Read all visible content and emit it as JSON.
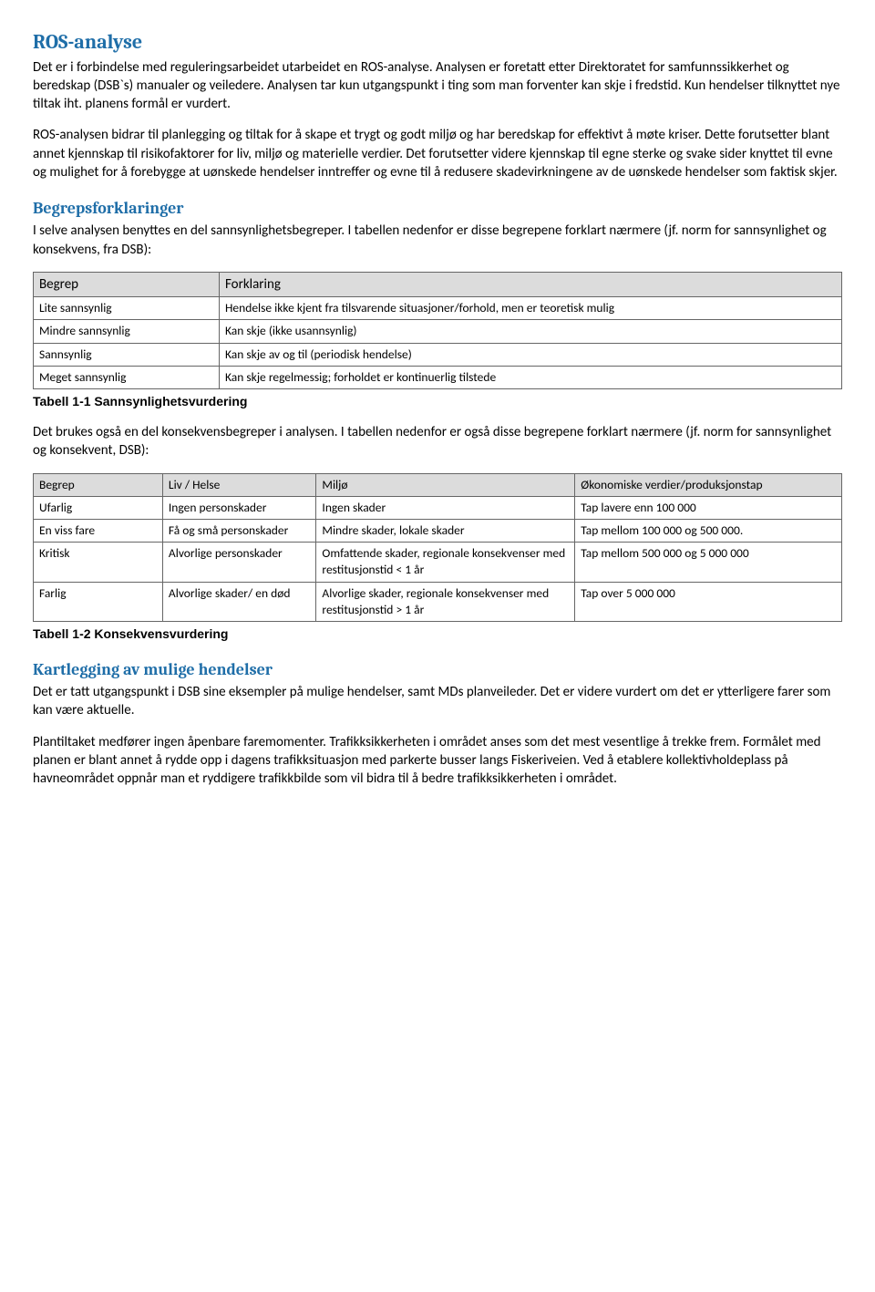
{
  "colors": {
    "heading": "#1f6ea8",
    "table_header_bg": "#dcdcdc",
    "table_border": "#666666",
    "text": "#000000",
    "background": "#ffffff"
  },
  "fonts": {
    "body": "Calibri",
    "heading": "Cambria",
    "caption": "Arial",
    "body_size_pt": 11,
    "heading_main_size_pt": 16,
    "heading_sub_size_pt": 14,
    "table_size_pt": 10
  },
  "section1": {
    "title": "ROS-analyse",
    "p1": "Det er i forbindelse med reguleringsarbeidet utarbeidet en ROS-analyse. Analysen er foretatt etter Direktoratet for samfunnssikkerhet og beredskap (DSB`s) manualer og veiledere. Analysen tar kun utgangspunkt i ting som man forventer kan skje i fredstid. Kun hendelser tilknyttet nye tiltak iht. planens formål er vurdert.",
    "p2": "ROS-analysen bidrar til planlegging og tiltak for å skape et trygt og godt miljø og har beredskap for effektivt å møte kriser. Dette forutsetter blant annet kjennskap til risikofaktorer for liv, miljø og materielle verdier. Det forutsetter videre kjennskap til egne sterke og svake sider knyttet til evne og mulighet for å forebygge at uønskede hendelser inntreffer og evne til å redusere skadevirkningene av de uønskede hendelser som faktisk skjer."
  },
  "section2": {
    "title": "Begrepsforklaringer",
    "intro": "I selve analysen benyttes en del sannsynlighetsbegreper. I tabellen nedenfor er disse begrepene forklart nærmere (jf. norm for sannsynlighet og konsekvens, fra DSB):"
  },
  "table1": {
    "head": {
      "c0": "Begrep",
      "c1": "Forklaring"
    },
    "rows": [
      {
        "c0": "Lite sannsynlig",
        "c1": "Hendelse ikke kjent fra tilsvarende situasjoner/forhold, men er teoretisk mulig"
      },
      {
        "c0": "Mindre sannsynlig",
        "c1": "Kan skje (ikke usannsynlig)"
      },
      {
        "c0": "Sannsynlig",
        "c1": "Kan skje av og til (periodisk hendelse)"
      },
      {
        "c0": "Meget sannsynlig",
        "c1": "Kan skje regelmessig; forholdet er kontinuerlig tilstede"
      }
    ],
    "caption": "Tabell 1-1 Sannsynlighetsvurdering"
  },
  "between": {
    "p": "Det brukes også en del konsekvensbegreper i analysen. I tabellen nedenfor er også disse begrepene forklart nærmere (jf. norm for sannsynlighet og konsekvent, DSB):"
  },
  "table2": {
    "head": {
      "c0": "Begrep",
      "c1": "Liv / Helse",
      "c2": "Miljø",
      "c3": "Økonomiske verdier/produksjonstap"
    },
    "rows": [
      {
        "c0": "Ufarlig",
        "c1": "Ingen personskader",
        "c2": "Ingen skader",
        "c3": "Tap lavere enn 100 000"
      },
      {
        "c0": "En viss fare",
        "c1": "Få og små personskader",
        "c2": "Mindre skader, lokale skader",
        "c3": "Tap mellom 100 000 og 500 000."
      },
      {
        "c0": "Kritisk",
        "c1": "Alvorlige personskader",
        "c2": "Omfattende skader, regionale konsekvenser med restitusjonstid < 1 år",
        "c3": "Tap mellom 500 000 og 5 000 000"
      },
      {
        "c0": "Farlig",
        "c1": "Alvorlige skader/ en død",
        "c2": "Alvorlige skader, regionale konsekvenser med restitusjonstid > 1 år",
        "c3": "Tap over 5 000 000"
      }
    ],
    "caption": "Tabell 1-2 Konsekvensvurdering"
  },
  "section3": {
    "title": "Kartlegging av mulige hendelser",
    "p1": "Det er tatt utgangspunkt i DSB sine eksempler på mulige hendelser, samt MDs planveileder. Det er videre vurdert om det er ytterligere farer som kan være aktuelle.",
    "p2": "Plantiltaket medfører ingen åpenbare faremomenter. Trafikksikkerheten i området anses som det mest vesentlige å trekke frem. Formålet med planen er blant annet å rydde opp i dagens trafikksituasjon med parkerte busser langs Fiskeriveien. Ved å etablere kollektivholdeplass på havneområdet oppnår man et ryddigere trafikkbilde som vil bidra til å bedre trafikksikkerheten i området."
  }
}
